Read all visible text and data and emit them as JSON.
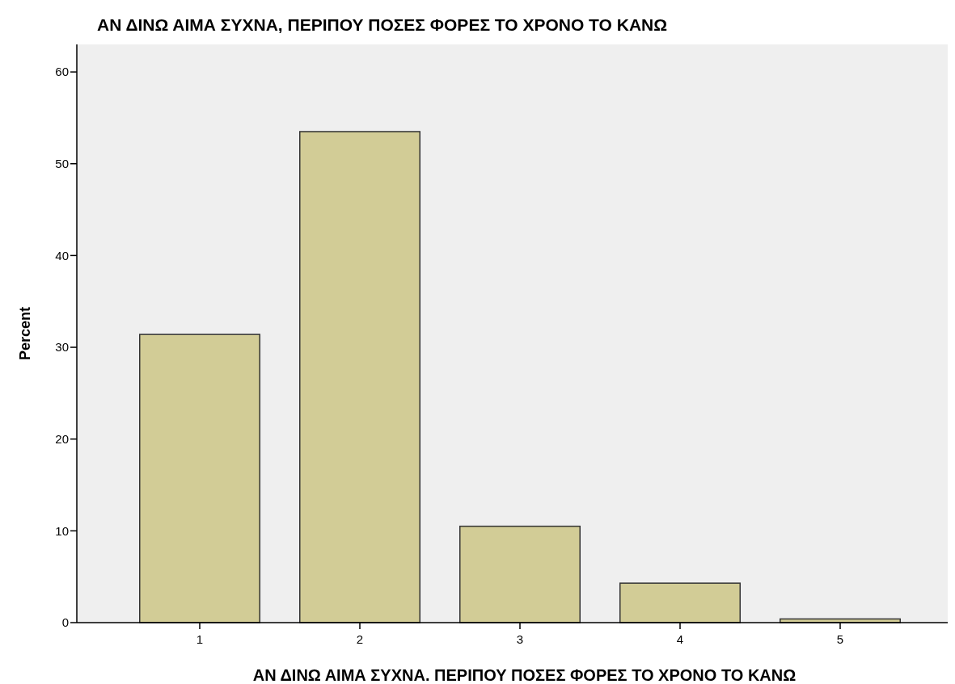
{
  "chart_data": {
    "type": "bar",
    "title": "ΑΝ ΔΙΝΩ ΑΙΜΑ ΣΥΧΝΑ, ΠΕΡΙΠΟΥ ΠΟΣΕΣ ΦΟΡΕΣ ΤΟ ΧΡΟΝΟ ΤΟ ΚΑΝΩ",
    "xlabel": "ΑΝ ΔΙΝΩ ΑΙΜΑ ΣΥΧΝΑ. ΠΕΡΙΠΟΥ ΠΟΣΕΣ ΦΟΡΕΣ ΤΟ ΧΡΟΝΟ ΤΟ ΚΑΝΩ",
    "ylabel": "Percent",
    "categories": [
      "1",
      "2",
      "3",
      "4",
      "5"
    ],
    "values": [
      31.4,
      53.5,
      10.5,
      4.3,
      0.4
    ],
    "color": "#d2cc96",
    "ylim": [
      0,
      63
    ],
    "yticks": [
      0,
      10,
      20,
      30,
      40,
      50,
      60
    ],
    "grid": false
  }
}
